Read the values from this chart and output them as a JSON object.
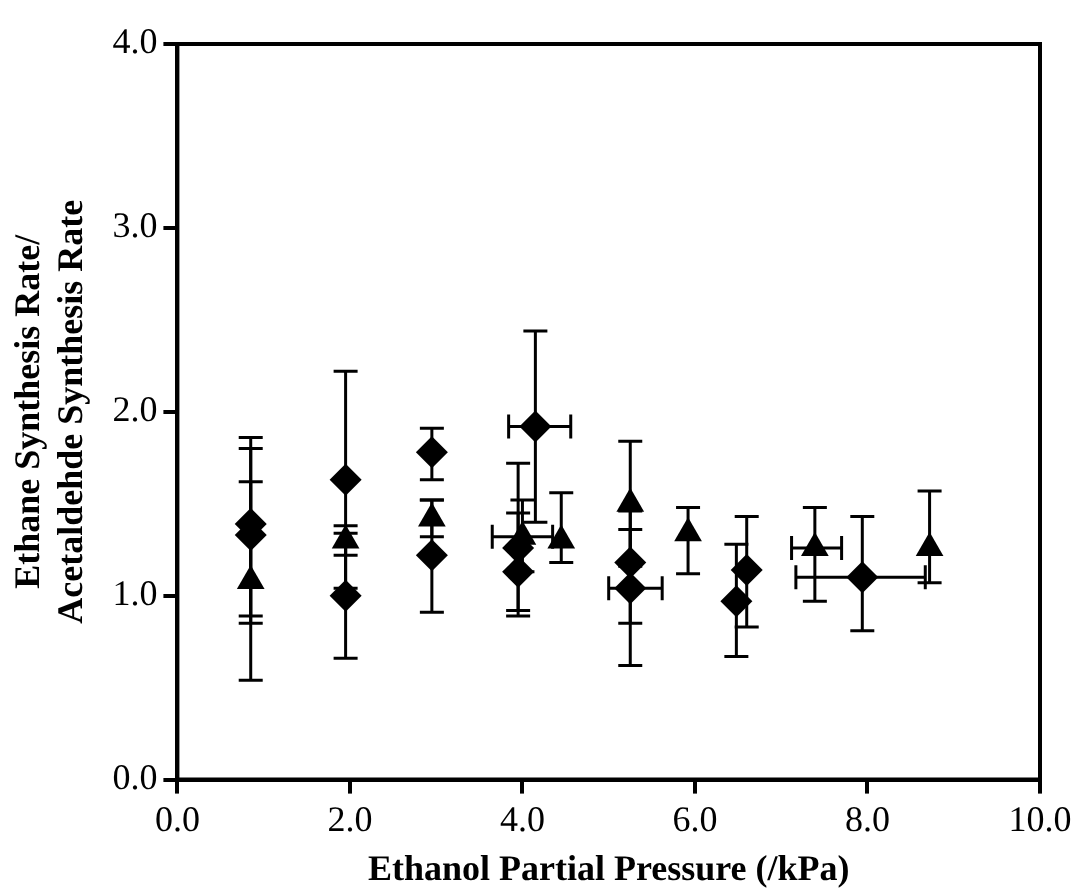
{
  "chart_data": {
    "type": "scatter",
    "xlabel": "Ethanol Partial Pressure (/kPa)",
    "ylabel": "Ethane Synthesis Rate/\nAcetaldehde Synthesis Rate",
    "xlim": [
      0,
      10
    ],
    "xticks": [
      {
        "value": 0,
        "label": "0.0"
      },
      {
        "value": 2,
        "label": "2.0"
      },
      {
        "value": 4,
        "label": "4.0"
      },
      {
        "value": 6,
        "label": "6.0"
      },
      {
        "value": 8,
        "label": "8.0"
      },
      {
        "value": 10,
        "label": "10.0"
      }
    ],
    "ylim": [
      0,
      4
    ],
    "yticks": [
      {
        "value": 0,
        "label": "0.0"
      },
      {
        "value": 1,
        "label": "1.0"
      },
      {
        "value": 2,
        "label": "2.0"
      },
      {
        "value": 3,
        "label": "3.0"
      },
      {
        "value": 4,
        "label": "4.0"
      }
    ],
    "grid": false,
    "legend": false,
    "series": [
      {
        "color": "#000000",
        "marker": "diamond",
        "x": [
          0.85,
          0.85,
          1.95,
          1.95,
          2.95,
          2.95,
          4.15,
          3.95,
          3.95,
          5.25,
          5.25,
          6.6,
          6.48,
          7.94
        ],
        "values": [
          1.39,
          1.33,
          1.63,
          1.0,
          1.78,
          1.22,
          1.92,
          1.26,
          1.13,
          1.18,
          1.04,
          1.14,
          0.97,
          1.1
        ],
        "errors": [
          [
            0.89,
            1.86
          ],
          [
            0.85,
            1.8
          ],
          [
            1.04,
            2.22
          ],
          [
            0.66,
            1.34
          ],
          [
            1.63,
            1.91
          ],
          [
            0.91,
            1.52
          ],
          [
            1.4,
            2.44
          ],
          [
            0.92,
            1.72
          ],
          [
            0.89,
            1.45
          ],
          [
            0.85,
            1.36
          ],
          [
            0.62,
            1.46
          ],
          [
            0.83,
            1.43
          ],
          [
            0.67,
            1.28
          ],
          [
            0.81,
            1.43
          ]
        ],
        "xerrors": [
          null,
          null,
          null,
          null,
          null,
          null,
          [
            3.84,
            4.56
          ],
          null,
          null,
          null,
          [
            5.0,
            5.62
          ],
          null,
          null,
          [
            7.17,
            8.67
          ]
        ]
      },
      {
        "color": "#000000",
        "marker": "triangle",
        "x": [
          0.85,
          1.95,
          2.95,
          4.0,
          4.45,
          5.25,
          5.92,
          7.39,
          8.72
        ],
        "values": [
          1.08,
          1.3,
          1.42,
          1.32,
          1.3,
          1.5,
          1.34,
          1.26,
          1.26
        ],
        "errors": [
          [
            0.54,
            1.62
          ],
          [
            1.22,
            1.38
          ],
          [
            1.32,
            1.52
          ],
          [
            1.13,
            1.52
          ],
          [
            1.18,
            1.56
          ],
          [
            1.16,
            1.84
          ],
          [
            1.12,
            1.48
          ],
          [
            0.97,
            1.48
          ],
          [
            1.07,
            1.57
          ]
        ],
        "xerrors": [
          null,
          null,
          null,
          [
            3.65,
            4.35
          ],
          null,
          null,
          null,
          [
            7.12,
            7.7
          ],
          null
        ]
      }
    ]
  }
}
